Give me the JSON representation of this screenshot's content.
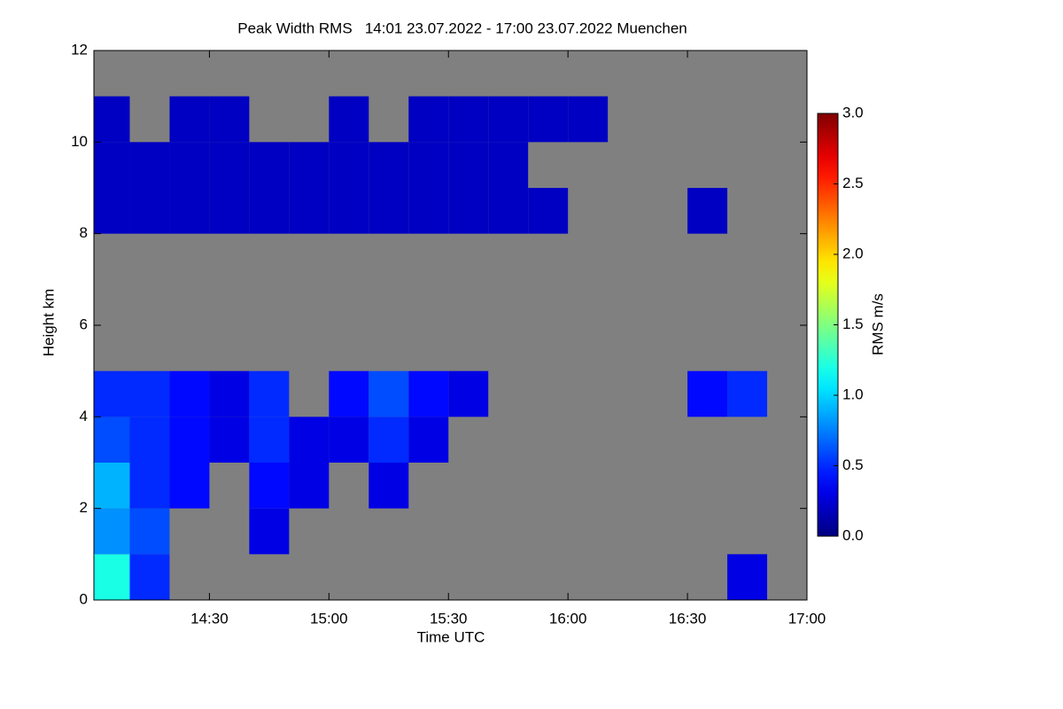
{
  "chart_data": {
    "type": "heatmap",
    "title": "Peak Width RMS   14:01 23.07.2022 - 17:00 23.07.2022 Muenchen",
    "x_label": "Time UTC",
    "y_label": "Height km",
    "colorbar_label": "RMS m/s",
    "colormap": "jet",
    "background": "#808080",
    "xlim": [
      841,
      1020
    ],
    "xticks": [
      {
        "value": 870,
        "label": "14:30"
      },
      {
        "value": 900,
        "label": "15:00"
      },
      {
        "value": 930,
        "label": "15:30"
      },
      {
        "value": 960,
        "label": "16:00"
      },
      {
        "value": 990,
        "label": "16:30"
      },
      {
        "value": 1020,
        "label": "17:00"
      }
    ],
    "ylim": [
      0,
      12
    ],
    "yticks": [
      0,
      2,
      4,
      6,
      8,
      10,
      12
    ],
    "zlim": [
      0,
      3
    ],
    "zticks": [
      {
        "value": 0,
        "label": "0.0"
      },
      {
        "value": 0.5,
        "label": "0.5"
      },
      {
        "value": 1,
        "label": "1.0"
      },
      {
        "value": 1.5,
        "label": "1.5"
      },
      {
        "value": 2,
        "label": "2.0"
      },
      {
        "value": 2.5,
        "label": "2.5"
      },
      {
        "value": 3,
        "label": "3.0"
      }
    ],
    "x_bins": [
      841,
      850,
      860,
      870,
      880,
      890,
      900,
      910,
      920,
      930,
      940,
      950,
      960,
      970,
      980,
      990,
      1000,
      1010,
      1020
    ],
    "y_bins": [
      0,
      1,
      2,
      3,
      4,
      5,
      6,
      7,
      8,
      9,
      10,
      11,
      12
    ],
    "z": [
      [
        1.2,
        0.5,
        null,
        null,
        null,
        null,
        null,
        null,
        null,
        null,
        null,
        null,
        null,
        null,
        null,
        null,
        0.3,
        null
      ],
      [
        0.8,
        0.6,
        null,
        null,
        0.3,
        null,
        null,
        null,
        null,
        null,
        null,
        null,
        null,
        null,
        null,
        null,
        null,
        null
      ],
      [
        0.9,
        0.5,
        0.4,
        null,
        0.4,
        0.3,
        null,
        0.3,
        null,
        null,
        null,
        null,
        null,
        null,
        null,
        null,
        null,
        null
      ],
      [
        0.6,
        0.5,
        0.4,
        0.3,
        0.5,
        0.3,
        0.3,
        0.5,
        0.3,
        null,
        null,
        null,
        null,
        null,
        null,
        null,
        null,
        null
      ],
      [
        0.5,
        0.5,
        0.4,
        0.3,
        0.5,
        null,
        0.4,
        0.6,
        0.4,
        0.3,
        null,
        null,
        null,
        null,
        null,
        0.4,
        0.5,
        null
      ],
      [
        null,
        null,
        null,
        null,
        null,
        null,
        null,
        null,
        null,
        null,
        null,
        null,
        null,
        null,
        null,
        null,
        null,
        null
      ],
      [
        null,
        null,
        null,
        null,
        null,
        null,
        null,
        null,
        null,
        null,
        null,
        null,
        null,
        null,
        null,
        null,
        null,
        null
      ],
      [
        null,
        null,
        null,
        null,
        null,
        null,
        null,
        null,
        null,
        null,
        null,
        null,
        null,
        null,
        null,
        null,
        null,
        null
      ],
      [
        0.2,
        0.2,
        0.2,
        0.2,
        0.2,
        0.2,
        0.2,
        0.2,
        0.2,
        0.2,
        0.2,
        0.2,
        null,
        null,
        null,
        0.2,
        null,
        null
      ],
      [
        0.2,
        0.2,
        0.2,
        0.2,
        0.2,
        0.2,
        0.2,
        0.2,
        0.2,
        0.2,
        0.2,
        null,
        null,
        null,
        null,
        null,
        null,
        null
      ],
      [
        0.2,
        null,
        0.2,
        0.2,
        null,
        null,
        0.2,
        null,
        0.2,
        0.2,
        0.2,
        0.2,
        0.2,
        null,
        null,
        null,
        null,
        null
      ],
      [
        null,
        null,
        null,
        null,
        null,
        null,
        null,
        null,
        null,
        null,
        null,
        null,
        null,
        null,
        null,
        null,
        null,
        null
      ]
    ]
  }
}
